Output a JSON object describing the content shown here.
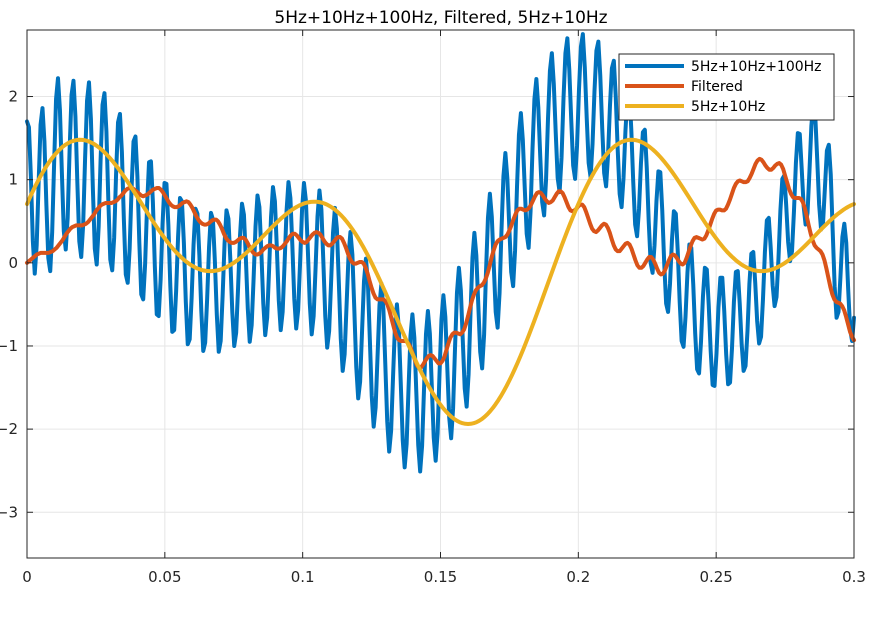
{
  "chart_data": {
    "type": "line",
    "title": "5Hz+10Hz+100Hz, Filtered, 5Hz+10Hz",
    "xlabel": "",
    "ylabel": "",
    "xlim": [
      0,
      0.3
    ],
    "ylim": [
      -3.55,
      2.8
    ],
    "xticks": [
      0,
      0.05,
      0.1,
      0.15,
      0.2,
      0.25,
      0.3
    ],
    "xtick_labels": [
      "0",
      "0.05",
      "0.1",
      "0.15",
      "0.2",
      "0.25",
      "0.3"
    ],
    "yticks": [
      2,
      1,
      0,
      -1,
      -2,
      -3
    ],
    "ytick_labels": [
      "2",
      "1",
      "0",
      "−1",
      "−2",
      "−3"
    ],
    "grid": true,
    "legend_position": "top-right",
    "x_step": 0.001,
    "series": [
      {
        "name": "5Hz+10Hz+100Hz",
        "color": "#0072BD",
        "values": [
          1.7,
          1.63,
          1.04,
          0.27,
          -0.13,
          0.21,
          0.96,
          1.66,
          1.86,
          1.46,
          0.7,
          0.06,
          -0.1,
          0.37,
          1.19,
          1.97,
          2.22,
          1.84,
          1.09,
          0.38,
          0.16,
          0.54,
          1.36,
          2.02,
          2.19,
          1.76,
          0.96,
          0.26,
          0.07,
          0.46,
          1.26,
          1.95,
          2.17,
          1.73,
          0.9,
          0.17,
          -0.02,
          0.44,
          1.24,
          1.9,
          2.04,
          1.58,
          0.75,
          0.04,
          -0.09,
          0.3,
          1.07,
          1.69,
          1.79,
          1.33,
          0.53,
          -0.14,
          -0.24,
          0.17,
          0.9,
          1.46,
          1.52,
          1.04,
          0.24,
          -0.38,
          -0.44,
          -0.01,
          0.69,
          1.21,
          1.22,
          0.73,
          -0.04,
          -0.62,
          -0.64,
          -0.2,
          0.47,
          0.96,
          0.95,
          0.45,
          -0.28,
          -0.83,
          -0.81,
          -0.34,
          0.31,
          0.78,
          0.74,
          0.24,
          -0.47,
          -0.98,
          -0.92,
          -0.42,
          0.22,
          0.65,
          0.59,
          0.09,
          -0.58,
          -1.06,
          -0.96,
          -0.44,
          0.19,
          0.6,
          0.52,
          0.02,
          -0.62,
          -1.07,
          -0.94,
          -0.4,
          0.23,
          0.63,
          0.53,
          0.03,
          -0.59,
          -1.0,
          -0.84,
          -0.29,
          0.33,
          0.71,
          0.58,
          0.06,
          -0.55,
          -0.95,
          -0.75,
          -0.19,
          0.44,
          0.81,
          0.67,
          0.13,
          -0.49,
          -0.87,
          -0.66,
          -0.08,
          0.55,
          0.91,
          0.74,
          0.18,
          -0.45,
          -0.81,
          -0.59,
          -0.01,
          0.62,
          0.97,
          0.78,
          0.21,
          -0.43,
          -0.79,
          -0.57,
          0.0,
          0.63,
          0.96,
          0.75,
          0.16,
          -0.49,
          -0.86,
          -0.64,
          -0.06,
          0.56,
          0.87,
          0.64,
          0.02,
          -0.64,
          -1.02,
          -0.82,
          -0.24,
          0.36,
          0.66,
          0.41,
          -0.23,
          -0.91,
          -1.3,
          -1.1,
          -0.51,
          0.08,
          0.37,
          0.1,
          -0.56,
          -1.25,
          -1.63,
          -1.43,
          -0.82,
          -0.22,
          0.05,
          -0.23,
          -0.91,
          -1.6,
          -1.97,
          -1.74,
          -1.12,
          -0.51,
          -0.25,
          -0.55,
          -1.22,
          -1.91,
          -2.27,
          -2.02,
          -1.37,
          -0.75,
          -0.5,
          -0.79,
          -1.46,
          -2.13,
          -2.46,
          -2.18,
          -1.51,
          -0.88,
          -0.62,
          -0.9,
          -1.55,
          -2.19,
          -2.51,
          -2.2,
          -1.51,
          -0.86,
          -0.58,
          -0.85,
          -1.48,
          -2.1,
          -2.38,
          -2.05,
          -1.33,
          -0.68,
          -0.39,
          -0.65,
          -1.26,
          -1.86,
          -2.11,
          -1.75,
          -1.02,
          -0.36,
          -0.06,
          -0.33,
          -0.93,
          -1.51,
          -1.73,
          -1.34,
          -0.6,
          0.06,
          0.36,
          0.09,
          -0.5,
          -1.07,
          -1.27,
          -0.87,
          -0.11,
          0.54,
          0.83,
          0.55,
          -0.03,
          -0.59,
          -0.78,
          -0.36,
          0.4,
          1.04,
          1.32,
          1.02,
          0.44,
          -0.11,
          -0.28,
          0.15,
          0.91,
          1.54,
          1.8,
          1.48,
          0.9,
          0.35,
          0.18,
          0.62,
          1.37,
          1.97,
          2.21,
          1.87,
          1.28,
          0.73,
          0.57,
          1.0,
          1.73,
          2.31,
          2.52,
          2.15,
          1.56,
          1.02,
          0.85,
          1.27,
          1.97,
          2.52,
          2.7,
          2.32,
          1.72,
          1.17,
          1.01,
          1.41,
          2.08,
          2.6,
          2.75,
          2.35,
          1.74,
          1.2,
          1.03,
          1.43,
          2.06,
          2.55,
          2.66,
          2.25,
          1.62,
          1.08,
          0.92,
          1.29,
          1.89,
          2.34,
          2.43,
          1.99,
          1.36,
          0.83,
          0.67,
          1.02,
          1.59,
          2.0,
          2.06,
          1.61,
          0.98,
          0.46,
          0.32,
          0.65,
          1.2,
          1.57,
          1.6,
          1.14,
          0.5,
          0.0,
          -0.12,
          0.21,
          0.74,
          1.1,
          1.09,
          0.63,
          0.0,
          -0.49,
          -0.59,
          -0.25,
          0.27,
          0.62,
          0.59,
          0.14,
          -0.47,
          -0.94,
          -1.01,
          -0.65,
          -0.12,
          0.22,
          0.18,
          -0.26,
          -0.85,
          -1.28,
          -1.33,
          -0.95,
          -0.41,
          -0.06,
          -0.08,
          -0.51,
          -1.06,
          -1.47,
          -1.48,
          -1.09,
          -0.54,
          -0.18,
          -0.18,
          -0.58,
          -1.1,
          -1.46,
          -1.44,
          -1.03,
          -0.47,
          -0.11,
          -0.1,
          -0.49,
          -0.98,
          -1.3,
          -1.24,
          -0.82,
          -0.25,
          0.11,
          0.13,
          -0.24,
          -0.7,
          -0.97,
          -0.89,
          -0.44,
          0.13,
          0.51,
          0.54,
          0.18,
          -0.27,
          -0.52,
          -0.41,
          0.05,
          0.63,
          1.01,
          1.05,
          0.69,
          0.25,
          0.02,
          0.14,
          0.62,
          1.2,
          1.56,
          1.55,
          1.13,
          0.68,
          0.46,
          0.6,
          1.1,
          1.65,
          1.92,
          1.77,
          1.25,
          0.7,
          0.4,
          0.47,
          0.91,
          1.35,
          1.42,
          1.06,
          0.38,
          -0.28,
          -0.66,
          -0.59,
          -0.17,
          0.31,
          0.47,
          0.24,
          -0.32,
          -0.8,
          -0.94,
          -0.66
        ]
      },
      {
        "name": "Filtered",
        "color": "#D95319",
        "values": [
          0.0,
          0.02,
          0.04,
          0.06,
          0.08,
          0.1,
          0.11,
          0.12,
          0.12,
          0.12,
          0.12,
          0.12,
          0.13,
          0.14,
          0.16,
          0.18,
          0.21,
          0.24,
          0.27,
          0.31,
          0.35,
          0.38,
          0.41,
          0.43,
          0.44,
          0.45,
          0.45,
          0.45,
          0.45,
          0.46,
          0.47,
          0.49,
          0.52,
          0.55,
          0.58,
          0.62,
          0.65,
          0.68,
          0.7,
          0.71,
          0.72,
          0.72,
          0.72,
          0.72,
          0.73,
          0.74,
          0.76,
          0.79,
          0.81,
          0.84,
          0.87,
          0.89,
          0.9,
          0.9,
          0.89,
          0.87,
          0.85,
          0.83,
          0.81,
          0.8,
          0.81,
          0.82,
          0.84,
          0.86,
          0.88,
          0.89,
          0.9,
          0.9,
          0.88,
          0.85,
          0.81,
          0.77,
          0.73,
          0.7,
          0.68,
          0.67,
          0.67,
          0.68,
          0.7,
          0.72,
          0.73,
          0.74,
          0.73,
          0.7,
          0.66,
          0.61,
          0.56,
          0.52,
          0.49,
          0.47,
          0.46,
          0.46,
          0.47,
          0.49,
          0.51,
          0.52,
          0.52,
          0.5,
          0.46,
          0.41,
          0.35,
          0.3,
          0.27,
          0.25,
          0.24,
          0.24,
          0.25,
          0.27,
          0.29,
          0.3,
          0.3,
          0.28,
          0.24,
          0.19,
          0.15,
          0.12,
          0.1,
          0.1,
          0.11,
          0.13,
          0.16,
          0.18,
          0.2,
          0.21,
          0.21,
          0.2,
          0.18,
          0.17,
          0.17,
          0.18,
          0.2,
          0.23,
          0.26,
          0.3,
          0.33,
          0.35,
          0.35,
          0.33,
          0.3,
          0.27,
          0.25,
          0.24,
          0.25,
          0.28,
          0.31,
          0.34,
          0.36,
          0.37,
          0.36,
          0.34,
          0.3,
          0.26,
          0.23,
          0.21,
          0.21,
          0.23,
          0.26,
          0.29,
          0.31,
          0.31,
          0.29,
          0.24,
          0.18,
          0.11,
          0.05,
          0.01,
          -0.01,
          -0.01,
          0.0,
          0.01,
          0.01,
          -0.01,
          -0.06,
          -0.13,
          -0.22,
          -0.3,
          -0.37,
          -0.42,
          -0.44,
          -0.44,
          -0.44,
          -0.44,
          -0.46,
          -0.5,
          -0.57,
          -0.66,
          -0.75,
          -0.84,
          -0.9,
          -0.93,
          -0.94,
          -0.94,
          -0.94,
          -0.95,
          -0.98,
          -1.03,
          -1.1,
          -1.17,
          -1.23,
          -1.26,
          -1.26,
          -1.23,
          -1.19,
          -1.15,
          -1.12,
          -1.11,
          -1.12,
          -1.15,
          -1.18,
          -1.21,
          -1.21,
          -1.18,
          -1.13,
          -1.05,
          -0.97,
          -0.9,
          -0.86,
          -0.84,
          -0.84,
          -0.85,
          -0.86,
          -0.84,
          -0.8,
          -0.73,
          -0.64,
          -0.54,
          -0.45,
          -0.38,
          -0.33,
          -0.3,
          -0.28,
          -0.27,
          -0.24,
          -0.19,
          -0.12,
          -0.03,
          0.07,
          0.15,
          0.22,
          0.26,
          0.28,
          0.29,
          0.3,
          0.31,
          0.34,
          0.39,
          0.45,
          0.52,
          0.58,
          0.63,
          0.65,
          0.65,
          0.64,
          0.63,
          0.64,
          0.66,
          0.7,
          0.75,
          0.8,
          0.84,
          0.85,
          0.84,
          0.81,
          0.77,
          0.74,
          0.72,
          0.73,
          0.75,
          0.79,
          0.83,
          0.86,
          0.86,
          0.84,
          0.79,
          0.73,
          0.67,
          0.63,
          0.62,
          0.63,
          0.65,
          0.68,
          0.7,
          0.7,
          0.67,
          0.61,
          0.54,
          0.47,
          0.41,
          0.38,
          0.37,
          0.39,
          0.42,
          0.45,
          0.47,
          0.46,
          0.42,
          0.36,
          0.28,
          0.21,
          0.16,
          0.14,
          0.14,
          0.17,
          0.2,
          0.23,
          0.24,
          0.22,
          0.17,
          0.1,
          0.03,
          -0.03,
          -0.06,
          -0.06,
          -0.04,
          0.0,
          0.04,
          0.07,
          0.07,
          0.04,
          -0.01,
          -0.07,
          -0.12,
          -0.14,
          -0.13,
          -0.09,
          -0.03,
          0.03,
          0.08,
          0.1,
          0.09,
          0.06,
          0.02,
          -0.01,
          -0.02,
          0.0,
          0.06,
          0.13,
          0.2,
          0.26,
          0.3,
          0.31,
          0.3,
          0.29,
          0.28,
          0.29,
          0.33,
          0.39,
          0.46,
          0.53,
          0.59,
          0.63,
          0.64,
          0.64,
          0.63,
          0.63,
          0.65,
          0.7,
          0.76,
          0.83,
          0.9,
          0.95,
          0.98,
          0.99,
          0.98,
          0.97,
          0.97,
          0.98,
          1.02,
          1.07,
          1.13,
          1.19,
          1.23,
          1.25,
          1.24,
          1.21,
          1.17,
          1.14,
          1.12,
          1.12,
          1.14,
          1.17,
          1.19,
          1.2,
          1.18,
          1.13,
          1.05,
          0.97,
          0.89,
          0.83,
          0.79,
          0.78,
          0.78,
          0.78,
          0.77,
          0.73,
          0.66,
          0.56,
          0.45,
          0.35,
          0.27,
          0.21,
          0.18,
          0.16,
          0.14,
          0.1,
          0.03,
          -0.07,
          -0.18,
          -0.29,
          -0.38,
          -0.44,
          -0.47,
          -0.48,
          -0.49,
          -0.52,
          -0.57,
          -0.65,
          -0.74,
          -0.83,
          -0.89,
          -0.93
        ]
      },
      {
        "name": "5Hz+10Hz",
        "color": "#EDB120",
        "values": [
          0.71
        ]
      }
    ]
  }
}
